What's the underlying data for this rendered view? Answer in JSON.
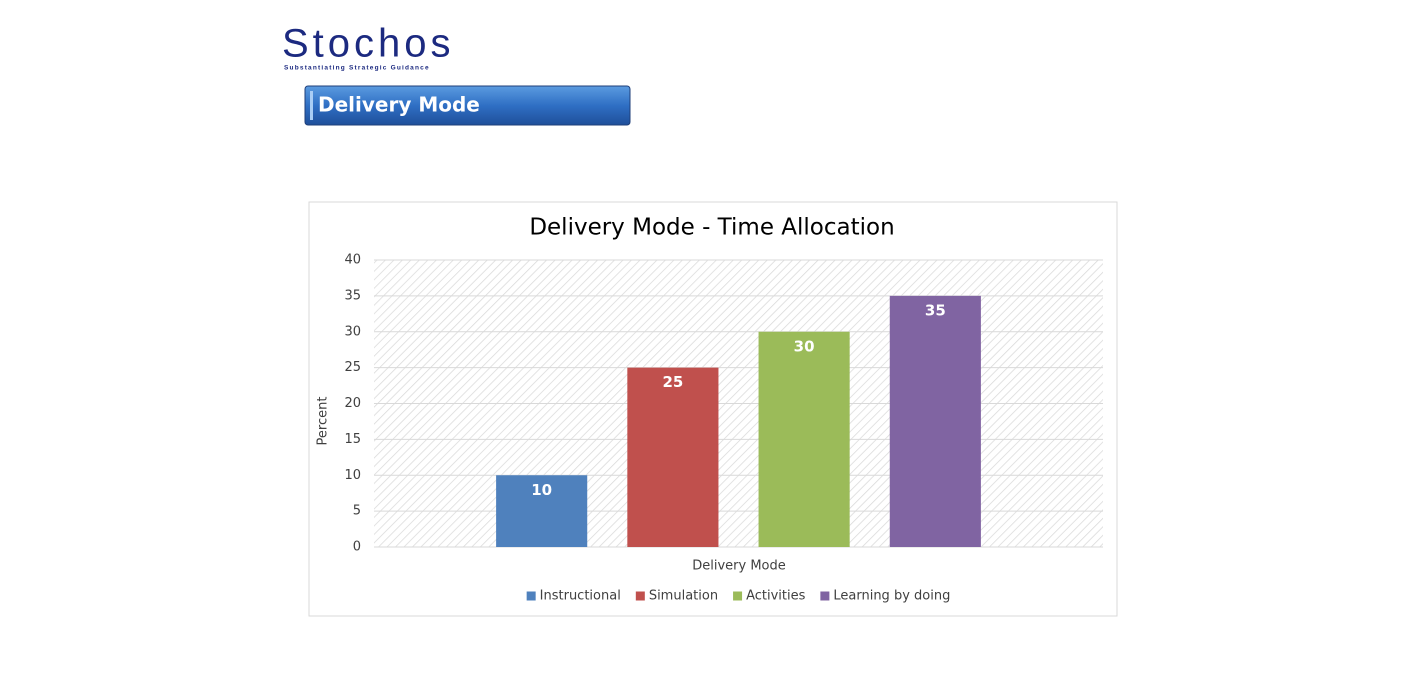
{
  "header": {
    "logo": "Stochos",
    "tagline": "Substantiating Strategic Guidance",
    "banner": "Delivery Mode"
  },
  "chart_data": {
    "type": "bar",
    "title": "Delivery Mode - Time Allocation",
    "x_label": "Delivery Mode",
    "y_label": "Percent",
    "series": [
      {
        "name": "Instructional",
        "color": "#4f81bd",
        "values": [
          10
        ]
      },
      {
        "name": "Simulation",
        "color": "#c0504d",
        "values": [
          25
        ]
      },
      {
        "name": "Activities",
        "color": "#9bbb59",
        "values": [
          30
        ]
      },
      {
        "name": "Learning by doing",
        "color": "#8064a2",
        "values": [
          35
        ]
      }
    ],
    "ylim": [
      0,
      40
    ],
    "yticks": [
      0,
      5,
      10,
      15,
      20,
      25,
      30,
      35,
      40
    ],
    "grid": true,
    "legend": "bottom"
  }
}
